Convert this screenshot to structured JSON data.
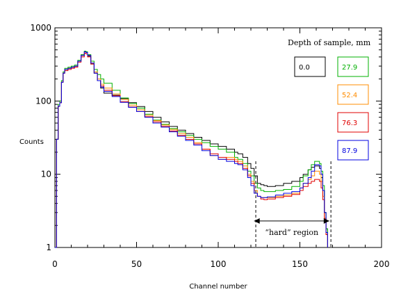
{
  "chart_data": {
    "type": "line",
    "xlabel": "Channel number",
    "ylabel": "Counts",
    "xlim": [
      0,
      200
    ],
    "ylim": [
      1,
      1000
    ],
    "yscale": "log",
    "xticks": [
      "0",
      "50",
      "100",
      "150",
      "200"
    ],
    "yticks": [
      "1",
      "10",
      "100",
      "1000"
    ],
    "legend_title": "Depth of sample, mm",
    "grid": false,
    "step_plot": true,
    "annotation": {
      "label": "“hard” region",
      "x_start": 122,
      "x_end": 168,
      "y": 2.3
    },
    "series": [
      {
        "name": "0.0",
        "color": "#000000",
        "x": [
          0,
          1,
          2,
          3,
          4,
          5,
          6,
          8,
          10,
          12,
          14,
          16,
          18,
          19,
          20,
          22,
          24,
          26,
          28,
          30,
          35,
          40,
          45,
          50,
          55,
          60,
          65,
          70,
          75,
          80,
          85,
          90,
          95,
          100,
          105,
          110,
          112,
          115,
          118,
          120,
          122,
          124,
          126,
          128,
          130,
          135,
          140,
          145,
          150,
          152,
          155,
          157,
          159,
          160,
          162,
          163,
          164,
          165,
          166,
          167
        ],
        "y": [
          1,
          30,
          85,
          95,
          180,
          240,
          270,
          280,
          290,
          300,
          350,
          420,
          470,
          460,
          410,
          320,
          240,
          190,
          150,
          128,
          120,
          108,
          95,
          84,
          72,
          60,
          52,
          45,
          40,
          36,
          32,
          29,
          26,
          24,
          22,
          20,
          19,
          17,
          14,
          12,
          9.5,
          7.5,
          7.2,
          7.0,
          6.8,
          7.0,
          7.5,
          8.0,
          9.0,
          10,
          11.5,
          12.5,
          13,
          13,
          12,
          9,
          6,
          3,
          1.8,
          1
        ]
      },
      {
        "name": "27.9",
        "color": "#00b000",
        "x": [
          0,
          1,
          2,
          3,
          4,
          5,
          6,
          8,
          10,
          12,
          14,
          16,
          18,
          19,
          20,
          22,
          24,
          26,
          28,
          30,
          35,
          40,
          45,
          50,
          55,
          60,
          65,
          70,
          75,
          80,
          85,
          90,
          95,
          100,
          105,
          110,
          112,
          115,
          118,
          120,
          122,
          124,
          126,
          128,
          130,
          135,
          140,
          145,
          150,
          152,
          155,
          157,
          159,
          160,
          162,
          163,
          164,
          165,
          166,
          167
        ],
        "y": [
          1,
          30,
          90,
          100,
          190,
          250,
          280,
          290,
          300,
          310,
          360,
          430,
          480,
          470,
          430,
          350,
          270,
          230,
          200,
          175,
          140,
          110,
          93,
          80,
          66,
          55,
          48,
          42,
          38,
          34,
          30,
          27,
          24,
          22,
          20,
          17,
          16,
          14,
          11,
          9.5,
          7.5,
          6.5,
          6.0,
          5.8,
          5.8,
          6.0,
          6.2,
          6.8,
          8.0,
          9.5,
          11.5,
          13.5,
          15,
          15,
          14,
          11,
          7,
          3,
          1.8,
          1
        ]
      },
      {
        "name": "52.4",
        "color": "#ff8c00",
        "x": [
          0,
          1,
          2,
          3,
          4,
          5,
          6,
          8,
          10,
          12,
          14,
          16,
          18,
          19,
          20,
          22,
          24,
          26,
          28,
          30,
          35,
          40,
          45,
          50,
          55,
          60,
          65,
          70,
          75,
          80,
          85,
          90,
          95,
          100,
          105,
          110,
          112,
          115,
          118,
          120,
          122,
          124,
          126,
          128,
          130,
          135,
          140,
          145,
          150,
          152,
          155,
          157,
          159,
          160,
          162,
          163,
          164,
          165,
          166,
          167
        ],
        "y": [
          1,
          30,
          85,
          95,
          180,
          240,
          270,
          280,
          290,
          300,
          350,
          420,
          470,
          460,
          420,
          330,
          250,
          200,
          170,
          150,
          125,
          105,
          88,
          76,
          64,
          54,
          47,
          41,
          36,
          32,
          27,
          22,
          18,
          16,
          17,
          16,
          15,
          13,
          10,
          8,
          6,
          5,
          4.8,
          4.8,
          4.8,
          5.0,
          5.2,
          5.5,
          6.5,
          7.5,
          8.5,
          9.5,
          11,
          11,
          10,
          8,
          5,
          2.5,
          1.5,
          1
        ]
      },
      {
        "name": "76.3",
        "color": "#e00000",
        "x": [
          0,
          1,
          2,
          3,
          4,
          5,
          6,
          8,
          10,
          12,
          14,
          16,
          18,
          19,
          20,
          22,
          24,
          26,
          28,
          30,
          35,
          40,
          45,
          50,
          55,
          60,
          65,
          70,
          75,
          80,
          85,
          90,
          95,
          100,
          105,
          110,
          112,
          115,
          118,
          120,
          122,
          124,
          126,
          128,
          130,
          135,
          140,
          145,
          150,
          152,
          155,
          157,
          159,
          160,
          162,
          163,
          164,
          165,
          166,
          167
        ],
        "y": [
          1,
          30,
          85,
          95,
          180,
          240,
          260,
          270,
          280,
          290,
          340,
          400,
          450,
          440,
          400,
          320,
          240,
          190,
          160,
          140,
          118,
          98,
          83,
          72,
          61,
          52,
          45,
          39,
          34,
          30,
          26,
          22,
          19,
          17,
          16,
          15,
          14,
          12,
          9.5,
          7.5,
          5.5,
          5.0,
          4.6,
          4.5,
          4.6,
          4.8,
          5.0,
          5.3,
          6.0,
          6.8,
          7.5,
          8.0,
          8.5,
          8.5,
          8,
          6.5,
          4.5,
          2.5,
          1.5,
          1
        ]
      },
      {
        "name": "87.9",
        "color": "#0000e0",
        "x": [
          0,
          1,
          2,
          3,
          4,
          5,
          6,
          8,
          10,
          12,
          14,
          16,
          18,
          19,
          20,
          22,
          24,
          26,
          28,
          30,
          35,
          40,
          45,
          50,
          55,
          60,
          65,
          70,
          75,
          80,
          85,
          90,
          95,
          100,
          105,
          110,
          112,
          115,
          118,
          120,
          122,
          124,
          126,
          128,
          130,
          135,
          140,
          145,
          150,
          152,
          155,
          157,
          159,
          160,
          162,
          163,
          164,
          165,
          166,
          167
        ],
        "y": [
          1,
          30,
          85,
          95,
          180,
          240,
          270,
          280,
          290,
          300,
          350,
          420,
          470,
          460,
          420,
          330,
          240,
          190,
          155,
          135,
          115,
          96,
          82,
          72,
          60,
          50,
          44,
          38,
          33,
          29,
          25,
          21,
          18,
          16,
          15,
          14,
          13.5,
          11.5,
          9,
          7,
          5.5,
          5.0,
          4.8,
          4.8,
          4.9,
          5.2,
          5.5,
          5.8,
          6.5,
          7.5,
          9,
          11,
          13.5,
          13.5,
          13,
          10,
          6,
          3,
          1.6,
          1
        ]
      }
    ]
  }
}
